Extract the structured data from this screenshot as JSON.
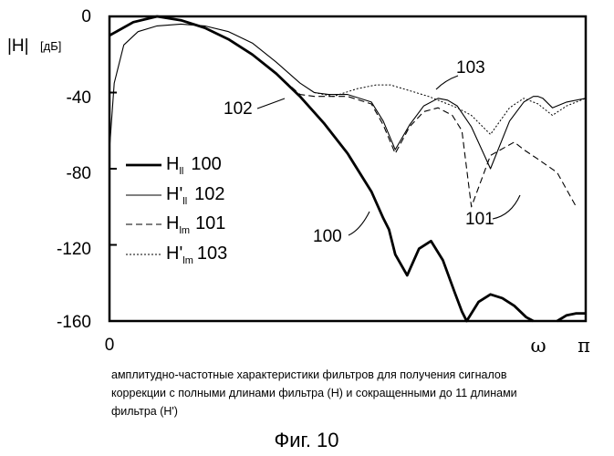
{
  "chart_data": {
    "type": "line",
    "ylabel": "|H|",
    "yunit": "[дБ]",
    "ylim": [
      -160,
      0
    ],
    "yticks": [
      "0",
      "-40",
      "-80",
      "-120",
      "-160"
    ],
    "xlim": [
      0,
      1
    ],
    "x_origin_label": "0",
    "x_tick_labels": [
      "ω",
      "π"
    ],
    "grid": false,
    "legend_position": "left-middle",
    "legend": [
      {
        "id": "hll",
        "base": "H",
        "prime": "",
        "sub": "ll",
        "ref": "100",
        "style": "thick"
      },
      {
        "id": "hll_p",
        "base": "H",
        "prime": "'",
        "sub": "ll",
        "ref": "102",
        "style": "thin"
      },
      {
        "id": "hlm",
        "base": "H",
        "prime": "",
        "sub": "lm",
        "ref": "101",
        "style": "dashed"
      },
      {
        "id": "hlm_p",
        "base": "H",
        "prime": "'",
        "sub": "lm",
        "ref": "103",
        "style": "dotted"
      }
    ],
    "annotations": [
      {
        "text": "103",
        "series": "hlm_p"
      },
      {
        "text": "102",
        "series": "hll_p"
      },
      {
        "text": "100",
        "series": "hll"
      },
      {
        "text": "101",
        "series": "hlm"
      }
    ],
    "series": [
      {
        "id": "hll",
        "style": "thick",
        "x": [
          0,
          0.05,
          0.1,
          0.15,
          0.2,
          0.25,
          0.3,
          0.35,
          0.4,
          0.45,
          0.5,
          0.55,
          0.575,
          0.587,
          0.6,
          0.625,
          0.65,
          0.675,
          0.7,
          0.725,
          0.74,
          0.75,
          0.775,
          0.8,
          0.825,
          0.85,
          0.875,
          0.89
        ],
        "y": [
          -10,
          -3,
          0,
          -2,
          -6,
          -12,
          -20,
          -30,
          -42,
          -56,
          -72,
          -92,
          -106,
          -112,
          -125,
          -136,
          -122,
          -118,
          -128,
          -145,
          -155,
          -160,
          -150,
          -146,
          -148,
          -152,
          -158,
          -160
        ]
      },
      {
        "id": "hll_tail",
        "style": "thick",
        "x": [
          0.94,
          0.96,
          0.98,
          1.0
        ],
        "y": [
          -160,
          -157,
          -156,
          -156
        ]
      },
      {
        "id": "hll_p",
        "style": "thin",
        "x": [
          0,
          0.01,
          0.03,
          0.06,
          0.1,
          0.15,
          0.2,
          0.25,
          0.3,
          0.35,
          0.4,
          0.43,
          0.46,
          0.5,
          0.55,
          0.575,
          0.6,
          0.63,
          0.66,
          0.69,
          0.71,
          0.73,
          0.76,
          0.8,
          0.84,
          0.87,
          0.89,
          0.9,
          0.91,
          0.93,
          0.96,
          1.0
        ],
        "y": [
          -70,
          -35,
          -15,
          -8,
          -5,
          -4,
          -5,
          -8,
          -14,
          -24,
          -35,
          -40,
          -41,
          -41,
          -45,
          -55,
          -70,
          -57,
          -47,
          -43,
          -44,
          -47,
          -58,
          -80,
          -55,
          -45,
          -42,
          -42,
          -43,
          -48,
          -45,
          -43
        ]
      },
      {
        "id": "hlm",
        "style": "dashed",
        "x": [
          0.15,
          0.2,
          0.25,
          0.3,
          0.35,
          0.4,
          0.43,
          0.46,
          0.5,
          0.55,
          0.575,
          0.6,
          0.63,
          0.66,
          0.69,
          0.72,
          0.74,
          0.76,
          0.8,
          0.85,
          0.87,
          0.9,
          0.94,
          0.98
        ],
        "y": [
          -2,
          -6,
          -12,
          -20,
          -30,
          -41,
          -42,
          -42,
          -42,
          -46,
          -57,
          -72,
          -58,
          -50,
          -48,
          -52,
          -60,
          -100,
          -73,
          -66,
          -70,
          -75,
          -82,
          -100
        ]
      },
      {
        "id": "hlm_p",
        "style": "dotted",
        "x": [
          0.43,
          0.47,
          0.52,
          0.56,
          0.59,
          0.63,
          0.67,
          0.7,
          0.73,
          0.76,
          0.8,
          0.84,
          0.87,
          0.9,
          0.93,
          0.96,
          1.0
        ],
        "y": [
          -40,
          -42,
          -38,
          -36,
          -36,
          -39,
          -42,
          -45,
          -48,
          -52,
          -62,
          -48,
          -43,
          -46,
          -52,
          -47,
          -43
        ]
      }
    ]
  },
  "caption": {
    "lines": [
      "амплитудно-частотные характеристики фильтров для получения сигналов",
      "коррекции с полными длинами фильтра (H) и сокращенными до 11 длинами",
      "фильтра (H')"
    ],
    "figure_label": "Фиг. 10"
  }
}
